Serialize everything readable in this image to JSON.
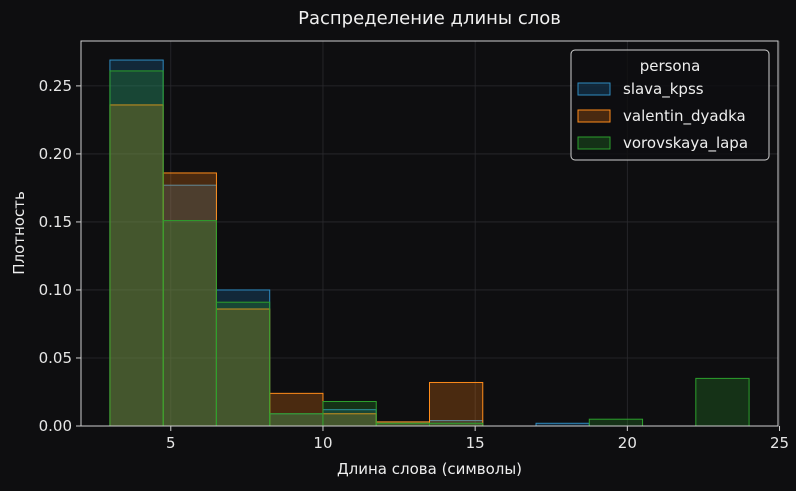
{
  "chart_data": {
    "type": "histogram",
    "title": "Распределение длины слов",
    "xlabel": "Длина слова (символы)",
    "ylabel": "Плотность",
    "xlim": [
      2.05,
      24.95
    ],
    "ylim": [
      0,
      0.283
    ],
    "xticks": [
      5,
      10,
      15,
      20,
      25
    ],
    "yticks": [
      0.0,
      0.05,
      0.1,
      0.15,
      0.2,
      0.25
    ],
    "ytick_labels": [
      "0.00",
      "0.05",
      "0.10",
      "0.15",
      "0.20",
      "0.25"
    ],
    "grid": true,
    "legend": {
      "title": "persona",
      "placement": "top-right",
      "entries": [
        "slava_kpss",
        "valentin_dyadka",
        "vorovskaya_lapa"
      ]
    },
    "bin_edges": [
      3.0,
      4.75,
      6.5,
      8.25,
      10.0,
      11.75,
      13.5,
      15.25,
      17.0,
      18.75,
      20.5,
      22.25,
      24.0
    ],
    "series": [
      {
        "name": "slava_kpss",
        "edge_color": "#2e8bc0",
        "fill_color": "#1f77b4",
        "values": [
          0.269,
          0.177,
          0.1,
          0.009,
          0.012,
          0.003,
          0.004,
          0,
          0.002,
          0,
          0,
          0
        ]
      },
      {
        "name": "valentin_dyadka",
        "edge_color": "#ff8c1a",
        "fill_color": "#ff7f0e",
        "values": [
          0.236,
          0.186,
          0.086,
          0.024,
          0.009,
          0.003,
          0.032,
          0,
          0,
          0,
          0,
          0
        ]
      },
      {
        "name": "vorovskaya_lapa",
        "edge_color": "#2ca02c",
        "fill_color": "#2ca02c",
        "values": [
          0.261,
          0.151,
          0.091,
          0.009,
          0.018,
          0.002,
          0.002,
          0,
          0,
          0.005,
          0,
          0.035
        ]
      }
    ]
  }
}
